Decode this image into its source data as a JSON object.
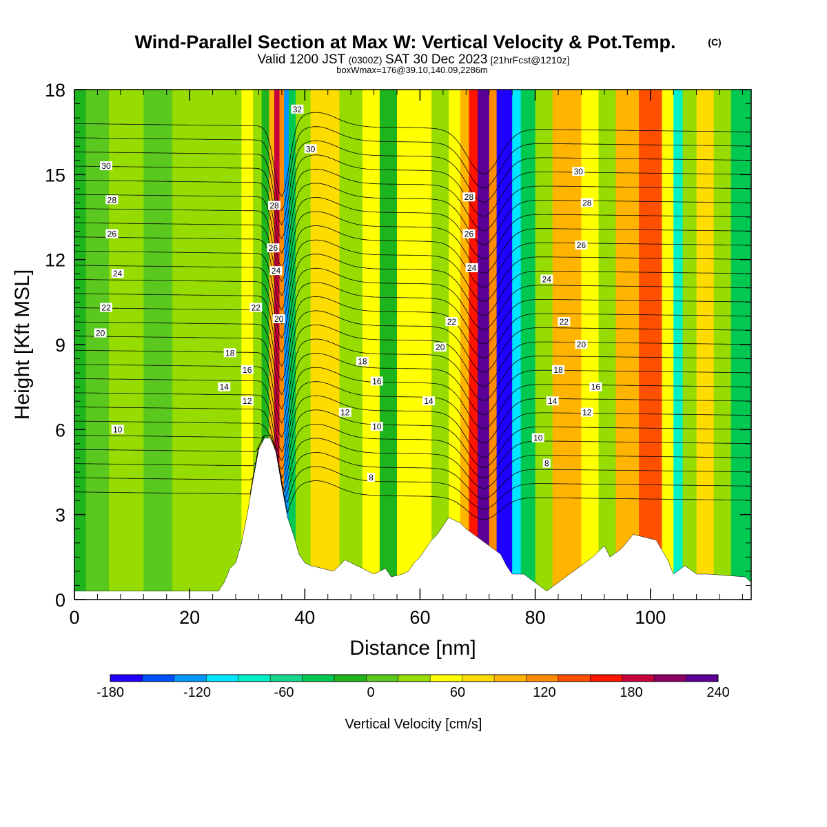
{
  "header": {
    "title": "Wind-Parallel Section at Max W: Vertical Velocity & Pot.Temp.",
    "copyright": "(C)",
    "valid_prefix": "Valid 1200 JST",
    "valid_utc": "(0300Z)",
    "valid_date": "SAT 30 Dec 2023",
    "fcst_info": "[21hrFcst@1210z]",
    "boxwmax": "boxWmax=176@39.10,140.09,2286m"
  },
  "chart_data": {
    "type": "heatmap",
    "xlabel": "Distance [nm]",
    "ylabel": "Height [Kft MSL]",
    "xlim": [
      0,
      117.5
    ],
    "ylim": [
      0,
      18
    ],
    "x_ticks": [
      0,
      20,
      40,
      60,
      80,
      100
    ],
    "y_ticks": [
      0,
      3,
      6,
      9,
      12,
      15,
      18
    ],
    "grid": false,
    "colorbar": {
      "label": "Vertical Velocity [cm/s]",
      "min": -180,
      "max": 240,
      "step": 20,
      "tick_values": [
        -180,
        -120,
        -60,
        0,
        60,
        120,
        180,
        240
      ],
      "colors": [
        "#1e00ff",
        "#0050ff",
        "#0096ff",
        "#00e6ff",
        "#00f0c8",
        "#14d78c",
        "#00c850",
        "#1eb41e",
        "#5ac81e",
        "#96dc00",
        "#ffff00",
        "#ffdc00",
        "#ffb400",
        "#ff8c00",
        "#ff5000",
        "#ff1400",
        "#c8003c",
        "#8c0064",
        "#5a0096"
      ]
    },
    "contour_labels": [
      {
        "v": "32",
        "x": 38.7,
        "y": 17.3
      },
      {
        "v": "30",
        "x": 41.0,
        "y": 15.9
      },
      {
        "v": "30",
        "x": 5.5,
        "y": 15.3
      },
      {
        "v": "28",
        "x": 6.5,
        "y": 14.1
      },
      {
        "v": "28",
        "x": 34.7,
        "y": 13.9
      },
      {
        "v": "26",
        "x": 6.5,
        "y": 12.9
      },
      {
        "v": "26",
        "x": 34.5,
        "y": 12.4
      },
      {
        "v": "24",
        "x": 7.5,
        "y": 11.5
      },
      {
        "v": "24",
        "x": 35.0,
        "y": 11.6
      },
      {
        "v": "22",
        "x": 5.5,
        "y": 10.3
      },
      {
        "v": "22",
        "x": 31.5,
        "y": 10.3
      },
      {
        "v": "20",
        "x": 4.5,
        "y": 9.4
      },
      {
        "v": "20",
        "x": 35.5,
        "y": 9.9
      },
      {
        "v": "18",
        "x": 27.0,
        "y": 8.7
      },
      {
        "v": "16",
        "x": 30.0,
        "y": 8.1
      },
      {
        "v": "14",
        "x": 26.0,
        "y": 7.5
      },
      {
        "v": "12",
        "x": 30.0,
        "y": 7.0
      },
      {
        "v": "10",
        "x": 7.5,
        "y": 6.0
      },
      {
        "v": "18",
        "x": 50.0,
        "y": 8.4
      },
      {
        "v": "16",
        "x": 52.5,
        "y": 7.7
      },
      {
        "v": "12",
        "x": 47.0,
        "y": 6.6
      },
      {
        "v": "10",
        "x": 52.5,
        "y": 6.1
      },
      {
        "v": "8",
        "x": 51.5,
        "y": 4.3
      },
      {
        "v": "14",
        "x": 61.5,
        "y": 7.0
      },
      {
        "v": "20",
        "x": 63.5,
        "y": 8.9
      },
      {
        "v": "22",
        "x": 65.5,
        "y": 9.8
      },
      {
        "v": "24",
        "x": 69.0,
        "y": 11.7
      },
      {
        "v": "26",
        "x": 68.5,
        "y": 12.9
      },
      {
        "v": "28",
        "x": 68.5,
        "y": 14.2
      },
      {
        "v": "30",
        "x": 87.5,
        "y": 15.1
      },
      {
        "v": "28",
        "x": 89.0,
        "y": 14.0
      },
      {
        "v": "26",
        "x": 88.0,
        "y": 12.5
      },
      {
        "v": "24",
        "x": 82.0,
        "y": 11.3
      },
      {
        "v": "22",
        "x": 85.0,
        "y": 9.8
      },
      {
        "v": "20",
        "x": 88.0,
        "y": 9.0
      },
      {
        "v": "18",
        "x": 84.0,
        "y": 8.1
      },
      {
        "v": "16",
        "x": 90.5,
        "y": 7.5
      },
      {
        "v": "14",
        "x": 83.0,
        "y": 7.0
      },
      {
        "v": "12",
        "x": 89.0,
        "y": 6.6
      },
      {
        "v": "10",
        "x": 80.5,
        "y": 5.7
      },
      {
        "v": "8",
        "x": 82.0,
        "y": 4.8
      }
    ],
    "terrain": [
      [
        0,
        0.3
      ],
      [
        25,
        0.3
      ],
      [
        26,
        0.6
      ],
      [
        27,
        1.1
      ],
      [
        28,
        1.3
      ],
      [
        29,
        2.0
      ],
      [
        30,
        3.0
      ],
      [
        31,
        4.2
      ],
      [
        32,
        5.3
      ],
      [
        33,
        5.7
      ],
      [
        34,
        5.7
      ],
      [
        35,
        5.2
      ],
      [
        36,
        4.0
      ],
      [
        37,
        2.9
      ],
      [
        38,
        2.3
      ],
      [
        39,
        1.6
      ],
      [
        40,
        1.3
      ],
      [
        41,
        1.2
      ],
      [
        43,
        1.1
      ],
      [
        45,
        1.0
      ],
      [
        47,
        1.4
      ],
      [
        48,
        1.3
      ],
      [
        50,
        1.1
      ],
      [
        52,
        0.9
      ],
      [
        54,
        1.1
      ],
      [
        55,
        0.8
      ],
      [
        57,
        0.9
      ],
      [
        58,
        1.0
      ],
      [
        59,
        1.3
      ],
      [
        60,
        1.5
      ],
      [
        61,
        1.8
      ],
      [
        62,
        2.1
      ],
      [
        63,
        2.3
      ],
      [
        64,
        2.6
      ],
      [
        65,
        2.9
      ],
      [
        67,
        2.7
      ],
      [
        68,
        2.5
      ],
      [
        70,
        2.2
      ],
      [
        72,
        1.9
      ],
      [
        74,
        1.6
      ],
      [
        75,
        1.2
      ],
      [
        76,
        0.9
      ],
      [
        78,
        0.9
      ],
      [
        80,
        0.6
      ],
      [
        82,
        0.3
      ],
      [
        84,
        0.6
      ],
      [
        86,
        0.9
      ],
      [
        88,
        1.2
      ],
      [
        90,
        1.5
      ],
      [
        92,
        1.9
      ],
      [
        93,
        1.5
      ],
      [
        95,
        1.8
      ],
      [
        97,
        2.3
      ],
      [
        101,
        2.1
      ],
      [
        103,
        1.4
      ],
      [
        104,
        0.9
      ],
      [
        106,
        1.2
      ],
      [
        108,
        0.9
      ],
      [
        110,
        0.9
      ],
      [
        116.5,
        0.8
      ],
      [
        117.5,
        0.6
      ]
    ],
    "cells": [
      {
        "x": 0,
        "w": 2,
        "v": -40
      },
      {
        "x": 2,
        "w": 4,
        "v": -20
      },
      {
        "x": 6,
        "w": 6,
        "v": 0
      },
      {
        "x": 12,
        "w": 5,
        "v": -20
      },
      {
        "x": 17,
        "w": 6,
        "v": 10
      },
      {
        "x": 23,
        "w": 6,
        "v": 0
      },
      {
        "x": 29,
        "w": 2,
        "v": 20
      },
      {
        "x": 31,
        "w": 1.5,
        "v": 0
      },
      {
        "x": 32.5,
        "w": 1.3,
        "v": -40
      },
      {
        "x": 33.8,
        "w": 0.9,
        "v": 60
      },
      {
        "x": 34.7,
        "w": 0.9,
        "v": 140
      },
      {
        "x": 35.6,
        "w": 0.8,
        "v": 90
      },
      {
        "x": 36.4,
        "w": 0.8,
        "v": -140
      },
      {
        "x": 37.2,
        "w": 1.2,
        "v": -60
      },
      {
        "x": 38.4,
        "w": 2.6,
        "v": 10
      },
      {
        "x": 41,
        "w": 5,
        "v": 40
      },
      {
        "x": 46,
        "w": 4,
        "v": 0
      },
      {
        "x": 50,
        "w": 3,
        "v": 30
      },
      {
        "x": 53,
        "w": 3,
        "v": -30
      },
      {
        "x": 56,
        "w": 6,
        "v": 30
      },
      {
        "x": 62,
        "w": 3,
        "v": 0
      },
      {
        "x": 65,
        "w": 2,
        "v": 20
      },
      {
        "x": 67,
        "w": 1.5,
        "v": 60
      },
      {
        "x": 68.5,
        "w": 1.5,
        "v": 130
      },
      {
        "x": 70,
        "w": 2,
        "v": 200
      },
      {
        "x": 72,
        "w": 1.3,
        "v": 90
      },
      {
        "x": 73.3,
        "w": 2.7,
        "v": -170
      },
      {
        "x": 76,
        "w": 1.5,
        "v": -110
      },
      {
        "x": 77.5,
        "w": 2.5,
        "v": -60
      },
      {
        "x": 80,
        "w": 3,
        "v": 10
      },
      {
        "x": 83,
        "w": 5,
        "v": 60
      },
      {
        "x": 88,
        "w": 3,
        "v": 30
      },
      {
        "x": 91,
        "w": 3,
        "v": 10
      },
      {
        "x": 94,
        "w": 4,
        "v": 60
      },
      {
        "x": 98,
        "w": 4,
        "v": 110
      },
      {
        "x": 102,
        "w": 2,
        "v": 20
      },
      {
        "x": 104,
        "w": 1.6,
        "v": -90
      },
      {
        "x": 105.6,
        "w": 2.4,
        "v": 0
      },
      {
        "x": 108,
        "w": 3,
        "v": 50
      },
      {
        "x": 111,
        "w": 3,
        "v": 0
      },
      {
        "x": 114,
        "w": 3.5,
        "v": -50
      }
    ],
    "theta_levels": [
      6,
      7,
      8,
      9,
      10,
      11,
      12,
      13,
      14,
      15,
      16,
      17,
      18,
      19,
      20,
      21,
      22,
      23,
      24,
      25,
      26,
      27,
      28,
      29,
      30,
      31,
      32
    ]
  }
}
